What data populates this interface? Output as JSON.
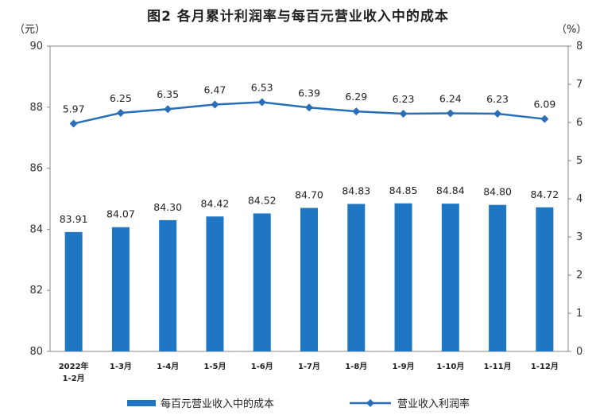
{
  "chart_data": {
    "type": "bar+line",
    "title": "图2  各月累计利润率与每百元营业收入中的成本",
    "ylabel_left": "（元）",
    "ylabel_right": "（%）",
    "categories": [
      [
        "2022年",
        "1-2月"
      ],
      [
        "1-3月"
      ],
      [
        "1-4月"
      ],
      [
        "1-5月"
      ],
      [
        "1-6月"
      ],
      [
        "1-7月"
      ],
      [
        "1-8月"
      ],
      [
        "1-9月"
      ],
      [
        "1-10月"
      ],
      [
        "1-11月"
      ],
      [
        "1-12月"
      ]
    ],
    "series": [
      {
        "name": "每百元营业收入中的成本",
        "type": "bar",
        "axis": "left",
        "values": [
          83.91,
          84.07,
          84.3,
          84.42,
          84.52,
          84.7,
          84.83,
          84.85,
          84.84,
          84.8,
          84.72
        ],
        "labels": [
          "83.91",
          "84.07",
          "84.30",
          "84.42",
          "84.52",
          "84.70",
          "84.83",
          "84.85",
          "84.84",
          "84.80",
          "84.72"
        ]
      },
      {
        "name": "营业收入利润率",
        "type": "line",
        "axis": "right",
        "values": [
          5.97,
          6.25,
          6.35,
          6.47,
          6.53,
          6.39,
          6.29,
          6.23,
          6.24,
          6.23,
          6.09
        ],
        "labels": [
          "5.97",
          "6.25",
          "6.35",
          "6.47",
          "6.53",
          "6.39",
          "6.29",
          "6.23",
          "6.24",
          "6.23",
          "6.09"
        ]
      }
    ],
    "y_left": {
      "min": 80,
      "max": 90,
      "ticks": [
        "80",
        "82",
        "84",
        "86",
        "88",
        "90"
      ]
    },
    "y_right": {
      "min": 0,
      "max": 8,
      "ticks": [
        "0",
        "1",
        "2",
        "3",
        "4",
        "5",
        "6",
        "7",
        "8"
      ]
    },
    "grid": false,
    "legend": "bottom",
    "colors": {
      "bar": "#1f77c4",
      "line": "#2a6eb8",
      "axis": "#888888"
    }
  }
}
